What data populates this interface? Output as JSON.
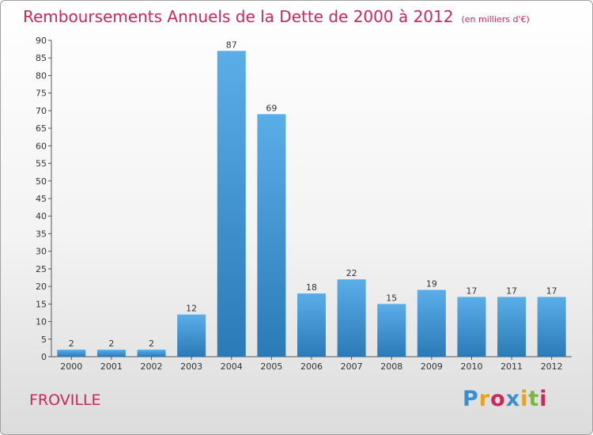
{
  "header": {
    "title": "Remboursements Annuels de la Dette de 2000 à 2012",
    "subtitle": "(en milliers d'€)"
  },
  "footer": {
    "commune": "FROVILLE",
    "logo_text": "Proxiti"
  },
  "colors": {
    "accent": "#c8285a",
    "bar_light": "#5aaee8",
    "bar_dark": "#2a7ab8",
    "logo": [
      "#3a8fd0",
      "#e8a020",
      "#c8285a",
      "#3a8fd0",
      "#e8a020",
      "#7ab83a",
      "#c8285a"
    ]
  },
  "chart_data": {
    "type": "bar",
    "title": "Remboursements Annuels de la Dette de 2000 à 2012",
    "subtitle": "(en milliers d'€)",
    "categories": [
      "2000",
      "2001",
      "2002",
      "2003",
      "2004",
      "2005",
      "2006",
      "2007",
      "2008",
      "2009",
      "2010",
      "2011",
      "2012"
    ],
    "values": [
      2,
      2,
      2,
      12,
      87,
      69,
      18,
      22,
      15,
      19,
      17,
      17,
      17
    ],
    "ylim": [
      0,
      90
    ],
    "yticks": [
      0,
      5,
      10,
      15,
      20,
      25,
      30,
      35,
      40,
      45,
      50,
      55,
      60,
      65,
      70,
      75,
      80,
      85,
      90
    ],
    "grid": false,
    "data_labels": true
  }
}
